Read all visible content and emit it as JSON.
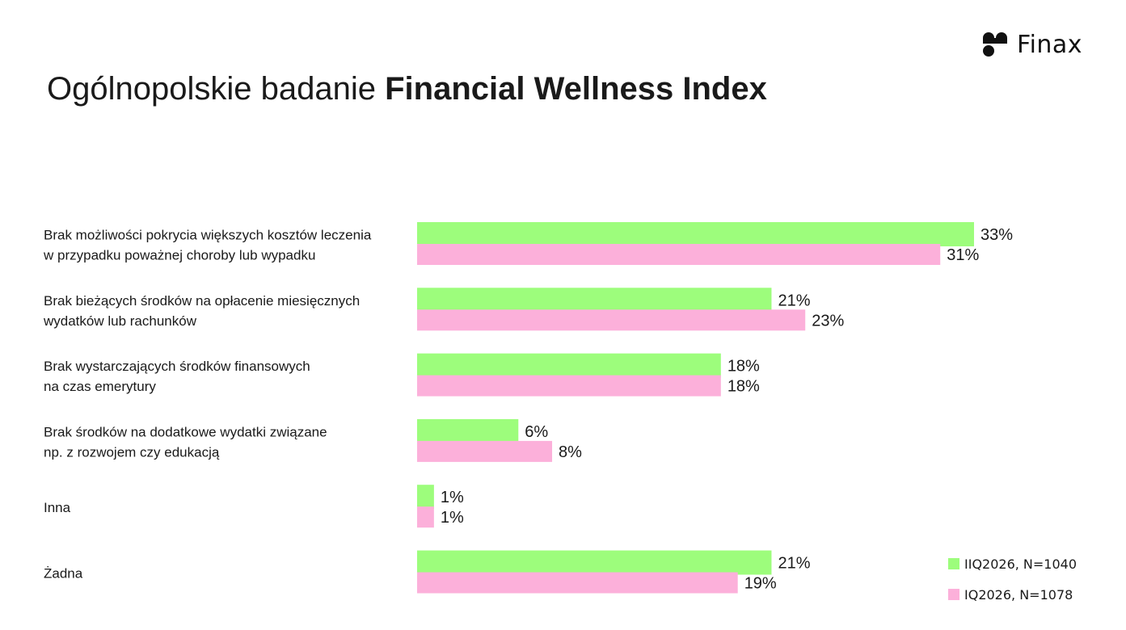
{
  "brand": {
    "name": "Finax"
  },
  "title": {
    "regular": "Ogólnopolskie badanie ",
    "bold": "Financial Wellness Index"
  },
  "chart_data": {
    "type": "bar",
    "orientation": "horizontal",
    "categories": [
      [
        "Brak możliwości pokrycia większych kosztów leczenia",
        "w przypadku poważnej choroby lub wypadku"
      ],
      [
        "Brak bieżących środków na opłacenie miesięcznych",
        "wydatków lub rachunków"
      ],
      [
        "Brak wystarczających środków finansowych",
        "na czas emerytury"
      ],
      [
        "Brak środków na dodatkowe wydatki związane",
        "np. z rozwojem czy edukacją"
      ],
      [
        "Inna"
      ],
      [
        "Żadna"
      ]
    ],
    "series": [
      {
        "name": "IIQ2026, N=1040",
        "color": "#9dfd7c",
        "values": [
          33,
          21,
          18,
          6,
          1,
          21
        ]
      },
      {
        "name": "IQ2026, N=1078",
        "color": "#fcb0da",
        "values": [
          31,
          23,
          18,
          8,
          1,
          19
        ]
      }
    ],
    "value_suffix": "%",
    "xlim": [
      0,
      33
    ],
    "grid": false,
    "legend_position": "bottom-right"
  }
}
